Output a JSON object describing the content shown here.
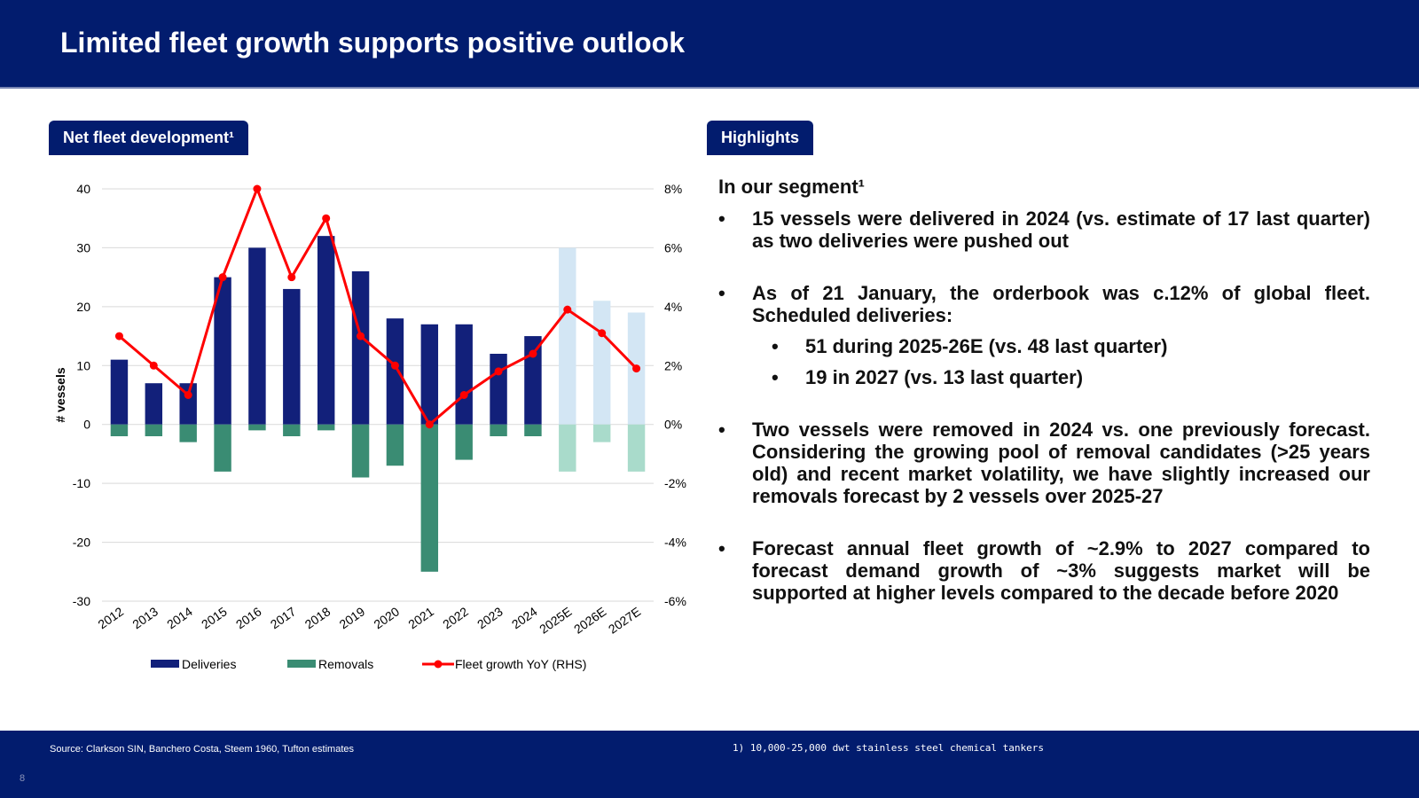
{
  "title": "Limited fleet growth supports positive outlook",
  "left_tab": "Net fleet development¹",
  "right_tab": "Highlights",
  "highlights": {
    "heading": "In our segment¹",
    "b1": "15 vessels were delivered in 2024 (vs. estimate of 17 last quarter) as two deliveries were pushed out",
    "b2": "As of 21 January, the orderbook was c.12% of global fleet. Scheduled deliveries:",
    "b2_sub1": "51 during 2025-26E (vs. 48 last quarter)",
    "b2_sub2": "19 in 2027 (vs. 13 last quarter)",
    "b3": "Two vessels were removed in 2024 vs. one previously forecast. Considering the growing pool of removal candidates (>25 years old) and recent market volatility, we have slightly increased our removals forecast by 2 vessels over 2025-27",
    "b4": "Forecast annual fleet growth of ~2.9% to 2027 compared to forecast demand growth of ~3% suggests market will be supported at higher levels compared to the decade before 2020"
  },
  "footer": {
    "source": "Source: Clarkson SIN, Banchero Costa, Steem 1960, Tufton estimates",
    "note": "1) 10,000-25,000 dwt stainless steel chemical tankers",
    "page": "8"
  },
  "colors": {
    "navy": "#021c6e",
    "deliveries": "#12207a",
    "removals": "#3a8c73",
    "deliveries_est": "#d3e6f4",
    "removals_est": "#a9dbcb",
    "growth": "#ff0000"
  },
  "chart_data": {
    "type": "bar",
    "categories": [
      "2012",
      "2013",
      "2014",
      "2015",
      "2016",
      "2017",
      "2018",
      "2019",
      "2020",
      "2021",
      "2022",
      "2023",
      "2024",
      "2025E",
      "2026E",
      "2027E"
    ],
    "estimate_from_index": 13,
    "series": [
      {
        "name": "Deliveries",
        "axis": "left",
        "values": [
          11,
          7,
          7,
          25,
          30,
          23,
          32,
          26,
          18,
          17,
          17,
          12,
          15,
          30,
          21,
          19
        ]
      },
      {
        "name": "Removals",
        "axis": "left",
        "values": [
          -2,
          -2,
          -3,
          -8,
          -1,
          -2,
          -1,
          -9,
          -7,
          -25,
          -6,
          -2,
          -2,
          -8,
          -3,
          -8
        ]
      },
      {
        "name": "Fleet growth YoY (RHS)",
        "axis": "right",
        "type": "line",
        "values": [
          3.0,
          2.0,
          1.0,
          5.0,
          8.0,
          5.0,
          7.0,
          3.0,
          2.0,
          0.0,
          1.0,
          1.8,
          2.4,
          3.9,
          3.1,
          1.9
        ]
      }
    ],
    "ylabel": "# vessels",
    "ylim": [
      -30,
      40
    ],
    "yticks": [
      "40",
      "30",
      "20",
      "10",
      "0",
      "-10",
      "-20",
      "-30"
    ],
    "y2lim": [
      -6,
      8
    ],
    "y2ticks": [
      "8%",
      "6%",
      "4%",
      "2%",
      "0%",
      "-2%",
      "-4%",
      "-6%"
    ],
    "legend": [
      "Deliveries",
      "Removals",
      "Fleet growth YoY (RHS)"
    ]
  }
}
